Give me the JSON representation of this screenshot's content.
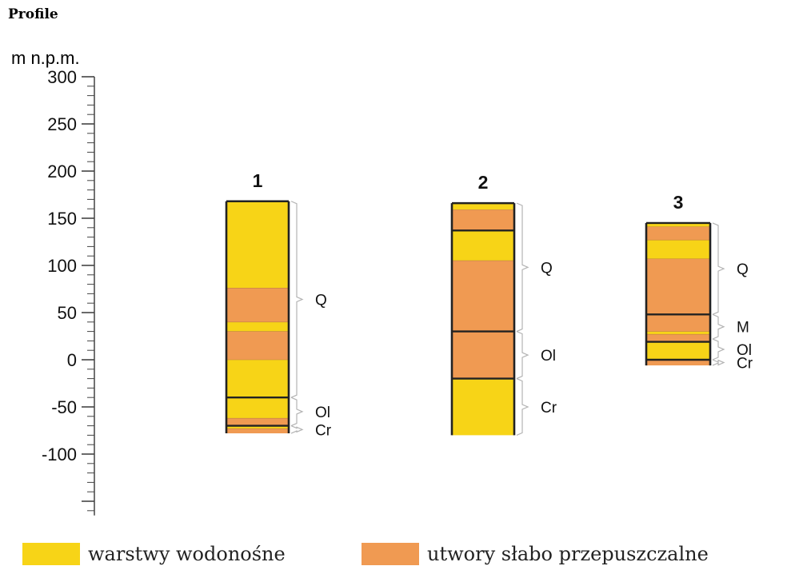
{
  "header": {
    "title": "Profile"
  },
  "axis": {
    "unit_label": "m n.p.m.",
    "tick_values": [
      300,
      250,
      200,
      150,
      100,
      50,
      0,
      -50,
      -100
    ],
    "tick_labels": [
      "300",
      "250",
      "200",
      "150",
      "100",
      "50",
      "0",
      "-50",
      "-100"
    ],
    "min": -165,
    "max": 300,
    "minor_step": 10
  },
  "colors": {
    "aquifer": "#f7d417",
    "low_permeability": "#f09a52",
    "outline": "#222222",
    "bracket": "#b3b3b3"
  },
  "profiles": [
    {
      "label": "1",
      "top": 168,
      "bottom": -78,
      "layers": [
        {
          "top": 168,
          "bottom": 76,
          "type": "aquifer"
        },
        {
          "top": 76,
          "bottom": 40,
          "type": "low_permeability"
        },
        {
          "top": 40,
          "bottom": 30,
          "type": "aquifer"
        },
        {
          "top": 30,
          "bottom": 0,
          "type": "low_permeability"
        },
        {
          "top": 0,
          "bottom": -40,
          "type": "aquifer"
        },
        {
          "top": -40,
          "bottom": -62,
          "type": "aquifer"
        },
        {
          "top": -62,
          "bottom": -70,
          "type": "low_permeability"
        },
        {
          "top": -70,
          "bottom": -73,
          "type": "aquifer"
        },
        {
          "top": -73,
          "bottom": -78,
          "type": "low_permeability"
        }
      ],
      "boundaries": [
        -40,
        -70
      ],
      "units": [
        {
          "label": "Q",
          "top": 168,
          "bottom": -40
        },
        {
          "label": "Ol",
          "top": -40,
          "bottom": -70
        },
        {
          "label": "Cr",
          "top": -70,
          "bottom": -78
        }
      ]
    },
    {
      "label": "2",
      "top": 166,
      "bottom": -80,
      "layers": [
        {
          "top": 166,
          "bottom": 159,
          "type": "aquifer"
        },
        {
          "top": 159,
          "bottom": 137,
          "type": "low_permeability"
        },
        {
          "top": 137,
          "bottom": 105,
          "type": "aquifer"
        },
        {
          "top": 105,
          "bottom": 30,
          "type": "low_permeability"
        },
        {
          "top": 30,
          "bottom": -20,
          "type": "low_permeability"
        },
        {
          "top": -20,
          "bottom": -80,
          "type": "aquifer"
        }
      ],
      "boundaries": [
        137,
        30,
        -20
      ],
      "units": [
        {
          "label": "Q",
          "top": 166,
          "bottom": 30
        },
        {
          "label": "Ol",
          "top": 30,
          "bottom": -20
        },
        {
          "label": "Cr",
          "top": -20,
          "bottom": -80
        }
      ]
    },
    {
      "label": "3",
      "top": 145,
      "bottom": -6,
      "layers": [
        {
          "top": 145,
          "bottom": 141,
          "type": "aquifer"
        },
        {
          "top": 141,
          "bottom": 127,
          "type": "low_permeability"
        },
        {
          "top": 127,
          "bottom": 107,
          "type": "aquifer"
        },
        {
          "top": 107,
          "bottom": 48,
          "type": "low_permeability"
        },
        {
          "top": 48,
          "bottom": 30,
          "type": "low_permeability"
        },
        {
          "top": 30,
          "bottom": 27,
          "type": "aquifer"
        },
        {
          "top": 27,
          "bottom": 19,
          "type": "low_permeability"
        },
        {
          "top": 19,
          "bottom": 0,
          "type": "aquifer"
        },
        {
          "top": 0,
          "bottom": -6,
          "type": "low_permeability"
        }
      ],
      "boundaries": [
        48,
        19,
        0
      ],
      "units": [
        {
          "label": "Q",
          "top": 145,
          "bottom": 48
        },
        {
          "label": "M",
          "top": 48,
          "bottom": 22
        },
        {
          "label": "Ol",
          "top": 22,
          "bottom": 0
        },
        {
          "label": "Cr",
          "top": 0,
          "bottom": -6
        }
      ]
    }
  ],
  "legend": [
    {
      "label": "warstwy wodonośne",
      "type": "aquifer"
    },
    {
      "label": "utwory słabo przepuszczalne",
      "type": "low_permeability"
    }
  ]
}
